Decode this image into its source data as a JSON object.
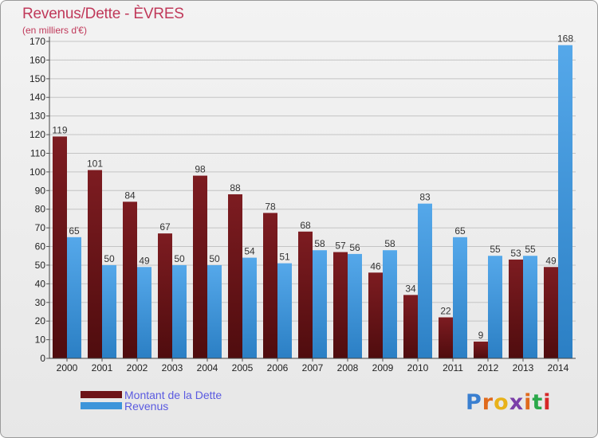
{
  "header": {
    "title": "Revenus/Dette - ÈVRES",
    "subtitle": "(en milliers d'€)"
  },
  "logo_text": "Proxiti",
  "colors": {
    "dette": "#6e1418",
    "revenus": "#3d95da",
    "title": "#c0395a",
    "legend_text": "#5a5ae0"
  },
  "chart_data": {
    "type": "bar",
    "title": "Revenus/Dette - ÈVRES",
    "subtitle": "(en milliers d'€)",
    "xlabel": "",
    "ylabel": "",
    "ylim": [
      0,
      170
    ],
    "ytick_step": 10,
    "grid": true,
    "legend_position": "bottom-left",
    "categories": [
      "2000",
      "2001",
      "2002",
      "2003",
      "2004",
      "2005",
      "2006",
      "2007",
      "2008",
      "2009",
      "2010",
      "2011",
      "2012",
      "2013",
      "2014"
    ],
    "series": [
      {
        "name": "Montant de la Dette",
        "color": "#6e1418",
        "values": [
          119,
          101,
          84,
          67,
          98,
          88,
          78,
          68,
          57,
          46,
          34,
          22,
          9,
          53,
          49
        ]
      },
      {
        "name": "Revenus",
        "color": "#3d95da",
        "values": [
          65,
          50,
          49,
          50,
          50,
          54,
          51,
          58,
          56,
          58,
          83,
          65,
          55,
          55,
          168
        ]
      }
    ]
  }
}
